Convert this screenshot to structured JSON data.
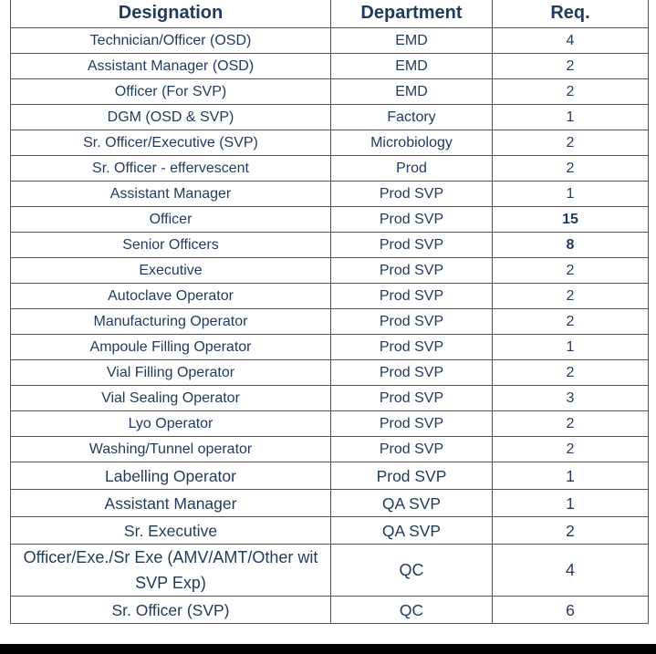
{
  "headers": {
    "designation": "Designation",
    "department": "Department",
    "req": "Req."
  },
  "rows": [
    {
      "designation": "Technician/Officer (OSD)",
      "department": "EMD",
      "req": "4"
    },
    {
      "designation": "Assistant Manager (OSD)",
      "department": "EMD",
      "req": "2"
    },
    {
      "designation": "Officer (For SVP)",
      "department": "EMD",
      "req": "2"
    },
    {
      "designation": "DGM (OSD & SVP)",
      "department": "Factory",
      "req": "1"
    },
    {
      "designation": "Sr. Officer/Executive (SVP)",
      "department": "Microbiology",
      "req": "2"
    },
    {
      "designation": "Sr. Officer - effervescent",
      "department": "Prod",
      "req": "2"
    },
    {
      "designation": "Assistant Manager",
      "department": "Prod SVP",
      "req": "1"
    },
    {
      "designation": "Officer",
      "department": "Prod SVP",
      "req": "15",
      "bold": true
    },
    {
      "designation": "Senior Officers",
      "department": "Prod SVP",
      "req": "8",
      "bold": true
    },
    {
      "designation": "Executive",
      "department": "Prod SVP",
      "req": "2"
    },
    {
      "designation": "Autoclave Operator",
      "department": "Prod SVP",
      "req": "2"
    },
    {
      "designation": "Manufacturing Operator",
      "department": "Prod SVP",
      "req": "2"
    },
    {
      "designation": "Ampoule Filling Operator",
      "department": "Prod SVP",
      "req": "1"
    },
    {
      "designation": "Vial Filling Operator",
      "department": "Prod SVP",
      "req": "2"
    },
    {
      "designation": "Vial Sealing Operator",
      "department": "Prod SVP",
      "req": "3"
    },
    {
      "designation": "Lyo Operator",
      "department": "Prod SVP",
      "req": "2"
    },
    {
      "designation": "Washing/Tunnel operator",
      "department": "Prod SVP",
      "req": "2"
    },
    {
      "designation": "Labelling Operator",
      "department": "Prod SVP",
      "req": "1"
    },
    {
      "designation": "Assistant Manager",
      "department": "QA SVP",
      "req": "1"
    },
    {
      "designation": "Sr. Executive",
      "department": "QA SVP",
      "req": "2"
    },
    {
      "designation": "Officer/Exe./Sr Exe (AMV/AMT/Other wit SVP Exp)",
      "department": "QC",
      "req": "4"
    },
    {
      "designation": "Sr. Officer (SVP)",
      "department": "QC",
      "req": "6"
    }
  ]
}
